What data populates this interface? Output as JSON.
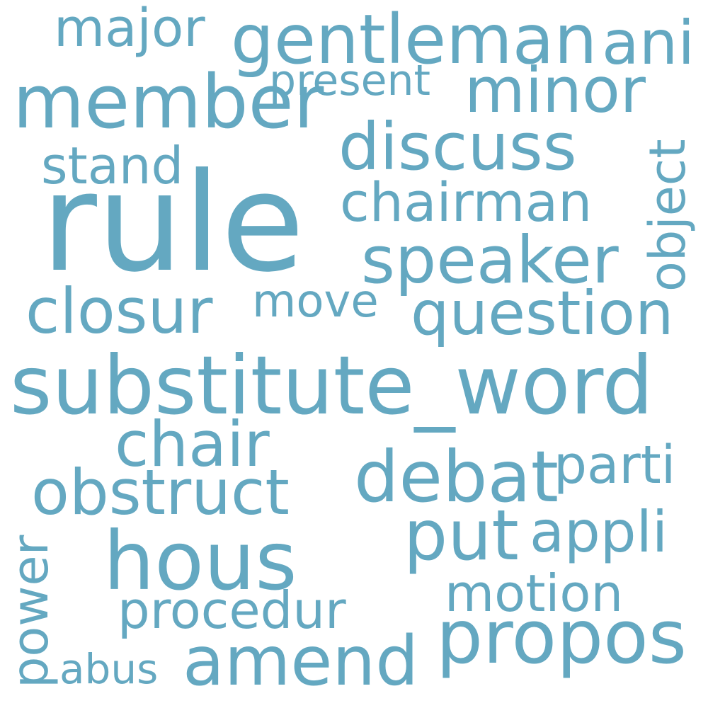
{
  "cloud": {
    "word_color": "#64a8c1",
    "background": "#ffffff",
    "words": {
      "rule": "rule",
      "substitute_word": "substitute_word",
      "member": "member",
      "gentleman": "gentleman",
      "major": "major",
      "ani": "ani",
      "present": "present",
      "minor": "minor",
      "discuss": "discuss",
      "stand": "stand",
      "chairman": "chairman",
      "object": "object",
      "speaker": "speaker",
      "closur": "closur",
      "move": "move",
      "question": "question",
      "chair": "chair",
      "debat": "debat",
      "parti": "parti",
      "obstruct": "obstruct",
      "put": "put",
      "appli": "appli",
      "hous": "hous",
      "power": "power",
      "motion": "motion",
      "procedur": "procedur",
      "propos": "propos",
      "abus": "abus",
      "amend": "amend"
    }
  }
}
